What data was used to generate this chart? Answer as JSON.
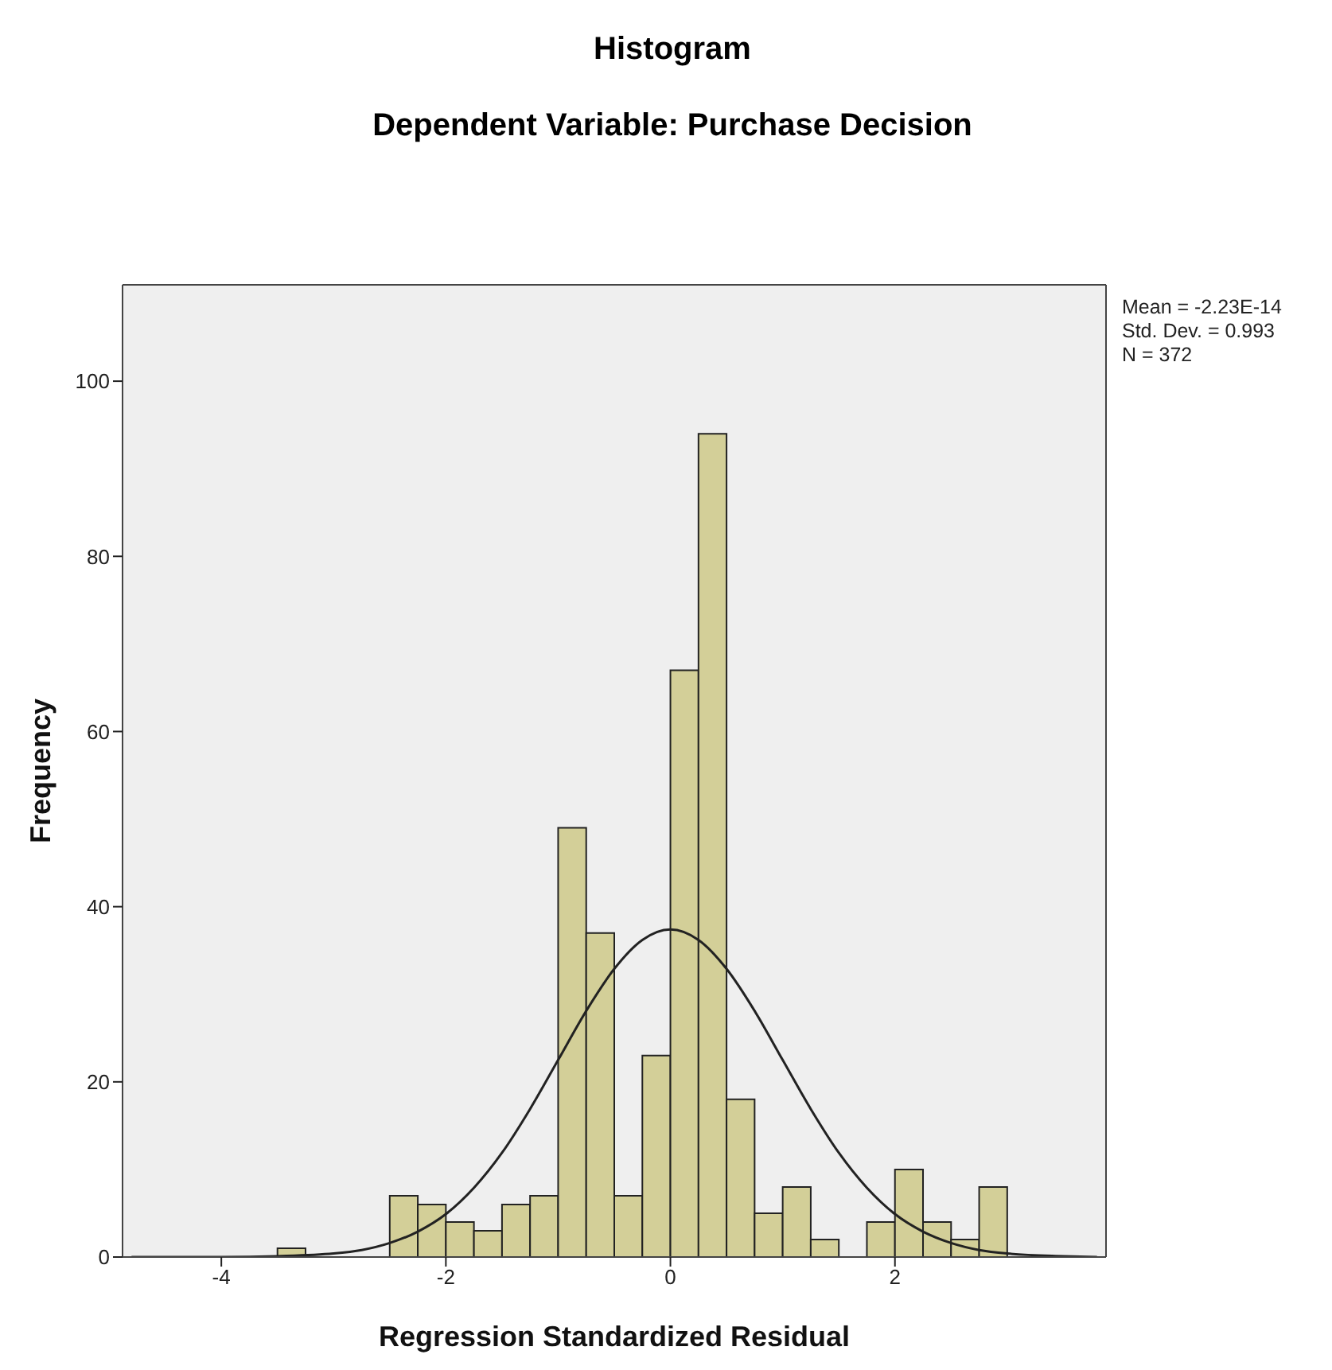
{
  "chart_data": {
    "type": "histogram",
    "title": "Histogram",
    "subtitle": "Dependent Variable: Purchase Decision",
    "xlabel": "Regression Standardized Residual",
    "ylabel": "Frequency",
    "bins": [
      -3.5,
      -3.25,
      -3.0,
      -2.75,
      -2.5,
      -2.25,
      -2.0,
      -1.75,
      -1.5,
      -1.25,
      -1.0,
      -0.75,
      -0.5,
      -0.25,
      0.0,
      0.25,
      0.5,
      0.75,
      1.0,
      1.25,
      1.5,
      1.75,
      2.0,
      2.25,
      2.5,
      2.75,
      3.0
    ],
    "values": [
      1,
      0,
      0,
      0,
      7,
      6,
      4,
      3,
      6,
      7,
      49,
      37,
      7,
      23,
      67,
      94,
      18,
      5,
      8,
      2,
      0,
      4,
      10,
      4,
      2,
      8
    ],
    "color": "#d3cf98",
    "series": [
      {
        "type": "line",
        "color": "#222222",
        "x": [
          -4.8,
          -4,
          -3.5,
          -3,
          -2.75,
          -2.5,
          -2.25,
          -2,
          -1.75,
          -1.5,
          -1.25,
          -1,
          -0.75,
          -0.5,
          -0.25,
          0,
          0.25,
          0.5,
          0.75,
          1,
          1.25,
          1.5,
          1.75,
          2,
          2.25,
          2.5,
          2.75,
          3,
          3.5,
          3.8
        ],
        "values": [
          0,
          0,
          0.1,
          0.4,
          0.8,
          1.6,
          2.9,
          4.9,
          7.9,
          11.9,
          16.9,
          22.5,
          28.1,
          32.9,
          36.2,
          37.4,
          36.2,
          32.9,
          28.1,
          22.5,
          16.9,
          11.9,
          7.9,
          4.9,
          2.9,
          1.6,
          0.8,
          0.4,
          0.1,
          0
        ]
      }
    ],
    "xlim": [
      -4.88,
      3.88
    ],
    "xticks": [
      -4,
      -2,
      0,
      2
    ],
    "ylim": [
      0,
      111
    ],
    "yticks": [
      0,
      20,
      40,
      60,
      80,
      100
    ],
    "grid": false,
    "annotations": [
      "Mean = -2.23E-14",
      "Std. Dev. = 0.993",
      "N = 372"
    ]
  }
}
